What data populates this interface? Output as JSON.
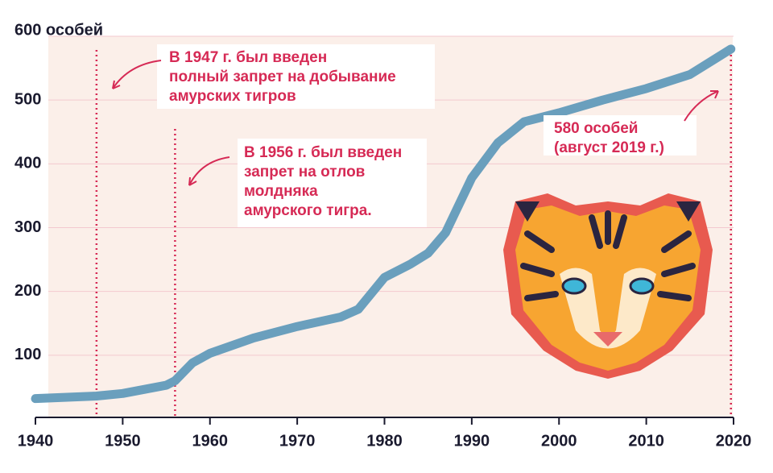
{
  "chart_data": {
    "type": "line",
    "x": [
      1940,
      1947,
      1950,
      1955,
      1956,
      1958,
      1960,
      1965,
      1970,
      1975,
      1977,
      1980,
      1983,
      1985,
      1987,
      1990,
      1993,
      1996,
      2000,
      2005,
      2010,
      2015,
      2019.7
    ],
    "values": [
      32,
      36,
      40,
      53,
      60,
      88,
      103,
      127,
      145,
      160,
      172,
      222,
      243,
      260,
      292,
      378,
      433,
      466,
      480,
      500,
      518,
      540,
      580
    ],
    "color": "#6a9fbd",
    "xlim": [
      1940,
      2020
    ],
    "xticks": [
      1940,
      1950,
      1960,
      1970,
      1980,
      1990,
      2000,
      2010,
      2020
    ],
    "ylim": [
      0,
      600
    ],
    "yticks": [
      100,
      200,
      300,
      400,
      500,
      {
        "value": 600,
        "label": "600 особей"
      }
    ],
    "grid": true,
    "vlines": [
      1947,
      1956,
      2019.7
    ],
    "annotations": [
      {
        "lines": [
          "В 1947 г. был введен",
          "полный запрет на добывание",
          "амурских тигров"
        ]
      },
      {
        "lines": [
          "В 1956 г. был введен",
          "запрет на отлов",
          "молдняка",
          "амурского тигра."
        ]
      },
      {
        "lines": [
          "580 особей",
          "(август 2019 г.)"
        ]
      }
    ]
  }
}
